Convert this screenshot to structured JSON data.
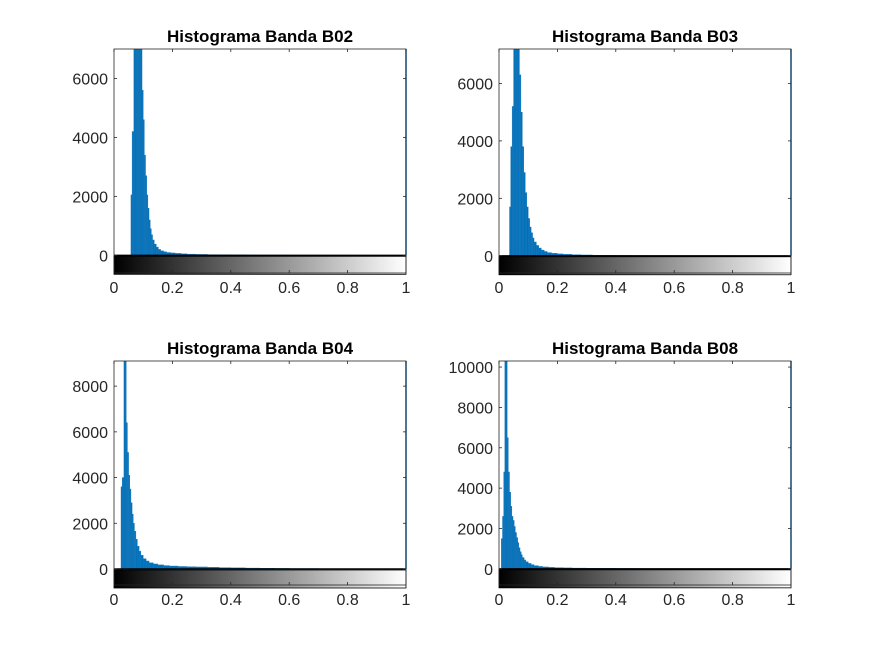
{
  "figure": {
    "background": "#ffffff",
    "bar_color": "#0072BD",
    "bar_edge": "#1f77b4"
  },
  "chart_data": [
    {
      "type": "bar",
      "title": "Histograma Banda B02",
      "xlabel": "",
      "ylabel": "",
      "xlim": [
        0,
        1
      ],
      "ylim": [
        -600,
        7000
      ],
      "xticks": [
        "0",
        "0.2",
        "0.4",
        "0.6",
        "0.8",
        "1"
      ],
      "yticks": [
        "0",
        "2000",
        "4000",
        "6000"
      ],
      "ytick_values": [
        0,
        2000,
        4000,
        6000
      ],
      "colorbar": "grayscale",
      "bins": [
        [
          0.062,
          2050
        ],
        [
          0.068,
          4200
        ],
        [
          0.072,
          7000
        ],
        [
          0.076,
          7000
        ],
        [
          0.08,
          7000
        ],
        [
          0.084,
          7000
        ],
        [
          0.088,
          7000
        ],
        [
          0.092,
          7000
        ],
        [
          0.096,
          7000
        ],
        [
          0.1,
          5600
        ],
        [
          0.104,
          4600
        ],
        [
          0.108,
          3400
        ],
        [
          0.112,
          2700
        ],
        [
          0.116,
          2050
        ],
        [
          0.12,
          1600
        ],
        [
          0.124,
          1200
        ],
        [
          0.128,
          900
        ],
        [
          0.132,
          700
        ],
        [
          0.138,
          520
        ],
        [
          0.145,
          380
        ],
        [
          0.152,
          280
        ],
        [
          0.16,
          200
        ],
        [
          0.17,
          150
        ],
        [
          0.18,
          120
        ],
        [
          0.195,
          95
        ],
        [
          0.21,
          80
        ],
        [
          0.23,
          65
        ],
        [
          0.25,
          50
        ],
        [
          0.28,
          40
        ],
        [
          0.32,
          30
        ],
        [
          0.36,
          22
        ],
        [
          0.4,
          18
        ],
        [
          0.45,
          14
        ],
        [
          0.5,
          10
        ],
        [
          0.6,
          8
        ],
        [
          0.7,
          6
        ],
        [
          0.8,
          5
        ],
        [
          0.9,
          4
        ],
        [
          1.0,
          3
        ]
      ]
    },
    {
      "type": "bar",
      "title": "Histograma Banda B03",
      "xlabel": "",
      "ylabel": "",
      "xlim": [
        0,
        1
      ],
      "ylim": [
        -600,
        7200
      ],
      "xticks": [
        "0",
        "0.2",
        "0.4",
        "0.6",
        "0.8",
        "1"
      ],
      "yticks": [
        "0",
        "2000",
        "4000",
        "6000"
      ],
      "ytick_values": [
        0,
        2000,
        4000,
        6000
      ],
      "colorbar": "grayscale",
      "bins": [
        [
          0.04,
          1700
        ],
        [
          0.045,
          3800
        ],
        [
          0.05,
          5200
        ],
        [
          0.055,
          7200
        ],
        [
          0.06,
          7200
        ],
        [
          0.065,
          7200
        ],
        [
          0.07,
          7200
        ],
        [
          0.075,
          6300
        ],
        [
          0.08,
          5000
        ],
        [
          0.085,
          3800
        ],
        [
          0.09,
          2900
        ],
        [
          0.095,
          2200
        ],
        [
          0.1,
          1700
        ],
        [
          0.105,
          1300
        ],
        [
          0.11,
          1000
        ],
        [
          0.115,
          800
        ],
        [
          0.12,
          620
        ],
        [
          0.128,
          480
        ],
        [
          0.136,
          360
        ],
        [
          0.145,
          270
        ],
        [
          0.155,
          200
        ],
        [
          0.165,
          150
        ],
        [
          0.18,
          110
        ],
        [
          0.2,
          85
        ],
        [
          0.22,
          65
        ],
        [
          0.25,
          50
        ],
        [
          0.28,
          38
        ],
        [
          0.32,
          28
        ],
        [
          0.36,
          20
        ],
        [
          0.4,
          15
        ],
        [
          0.45,
          12
        ],
        [
          0.5,
          9
        ],
        [
          0.6,
          7
        ],
        [
          0.7,
          5
        ],
        [
          0.8,
          4
        ],
        [
          0.9,
          3
        ],
        [
          1.0,
          3
        ]
      ]
    },
    {
      "type": "bar",
      "title": "Histograma Banda B04",
      "xlabel": "",
      "ylabel": "",
      "xlim": [
        0,
        1
      ],
      "ylim": [
        -700,
        9100
      ],
      "xticks": [
        "0",
        "0.2",
        "0.4",
        "0.6",
        "0.8",
        "1"
      ],
      "yticks": [
        "0",
        "2000",
        "4000",
        "6000",
        "8000"
      ],
      "ytick_values": [
        0,
        2000,
        4000,
        6000,
        8000
      ],
      "colorbar": "grayscale",
      "bins": [
        [
          0.028,
          3600
        ],
        [
          0.034,
          4000
        ],
        [
          0.038,
          9100
        ],
        [
          0.042,
          9100
        ],
        [
          0.046,
          6400
        ],
        [
          0.05,
          5100
        ],
        [
          0.054,
          4100
        ],
        [
          0.058,
          3500
        ],
        [
          0.062,
          2900
        ],
        [
          0.066,
          2400
        ],
        [
          0.07,
          2000
        ],
        [
          0.075,
          1650
        ],
        [
          0.08,
          1300
        ],
        [
          0.086,
          1000
        ],
        [
          0.092,
          780
        ],
        [
          0.1,
          600
        ],
        [
          0.11,
          450
        ],
        [
          0.12,
          350
        ],
        [
          0.135,
          270
        ],
        [
          0.15,
          220
        ],
        [
          0.17,
          180
        ],
        [
          0.19,
          150
        ],
        [
          0.22,
          130
        ],
        [
          0.25,
          110
        ],
        [
          0.28,
          100
        ],
        [
          0.32,
          90
        ],
        [
          0.36,
          75
        ],
        [
          0.4,
          60
        ],
        [
          0.45,
          50
        ],
        [
          0.5,
          40
        ],
        [
          0.55,
          32
        ],
        [
          0.6,
          25
        ],
        [
          0.7,
          18
        ],
        [
          0.8,
          12
        ],
        [
          0.9,
          8
        ],
        [
          1.0,
          5
        ]
      ]
    },
    {
      "type": "bar",
      "title": "Histograma Banda B08",
      "xlabel": "",
      "ylabel": "",
      "xlim": [
        0,
        1
      ],
      "ylim": [
        -800,
        10300
      ],
      "xticks": [
        "0",
        "0.2",
        "0.4",
        "0.6",
        "0.8",
        "1"
      ],
      "yticks": [
        "0",
        "2000",
        "4000",
        "6000",
        "8000",
        "10000"
      ],
      "ytick_values": [
        0,
        2000,
        4000,
        6000,
        8000,
        10000
      ],
      "colorbar": "grayscale",
      "bins": [
        [
          0.012,
          1500
        ],
        [
          0.016,
          2600
        ],
        [
          0.02,
          4800
        ],
        [
          0.024,
          10300
        ],
        [
          0.028,
          10300
        ],
        [
          0.032,
          6500
        ],
        [
          0.036,
          4800
        ],
        [
          0.04,
          3800
        ],
        [
          0.044,
          3100
        ],
        [
          0.048,
          2600
        ],
        [
          0.052,
          2400
        ],
        [
          0.056,
          2100
        ],
        [
          0.06,
          1800
        ],
        [
          0.064,
          1550
        ],
        [
          0.068,
          1300
        ],
        [
          0.072,
          1050
        ],
        [
          0.076,
          850
        ],
        [
          0.08,
          700
        ],
        [
          0.086,
          560
        ],
        [
          0.092,
          440
        ],
        [
          0.1,
          350
        ],
        [
          0.11,
          270
        ],
        [
          0.12,
          210
        ],
        [
          0.135,
          160
        ],
        [
          0.15,
          120
        ],
        [
          0.17,
          95
        ],
        [
          0.19,
          75
        ],
        [
          0.22,
          60
        ],
        [
          0.25,
          48
        ],
        [
          0.3,
          38
        ],
        [
          0.35,
          30
        ],
        [
          0.4,
          24
        ],
        [
          0.45,
          19
        ],
        [
          0.5,
          15
        ],
        [
          0.6,
          11
        ],
        [
          0.7,
          8
        ],
        [
          0.8,
          6
        ],
        [
          0.9,
          4
        ],
        [
          1.0,
          3
        ]
      ]
    }
  ]
}
